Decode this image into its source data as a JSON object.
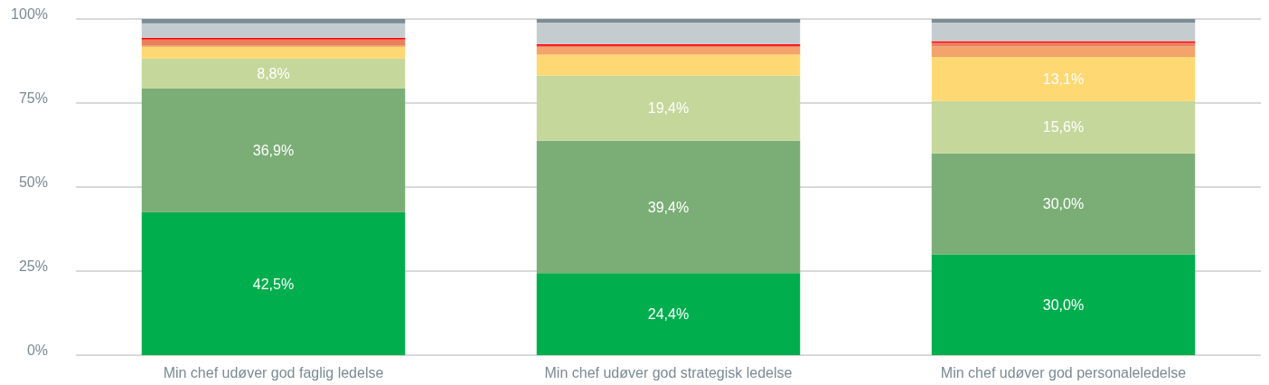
{
  "chart_data": {
    "type": "bar",
    "stacked": true,
    "categories": [
      "Min chef udøver god faglig ledelse",
      "Min chef udøver god strategisk ledelse",
      "Min chef udøver god personaleledelse"
    ],
    "series": [
      {
        "color": "#00ae4d",
        "values": [
          42.5,
          24.4,
          30.0
        ],
        "value_labels": [
          "42,5%",
          "24,4%",
          "30,0%"
        ]
      },
      {
        "color": "#7aae76",
        "values": [
          36.9,
          39.4,
          30.0
        ],
        "value_labels": [
          "36,9%",
          "39,4%",
          "30,0%"
        ]
      },
      {
        "color": "#c5d79a",
        "values": [
          8.8,
          19.4,
          15.6
        ],
        "value_labels": [
          "8,8%",
          "19,4%",
          "15,6%"
        ]
      },
      {
        "color": "#fed872",
        "values": [
          3.5,
          6.2,
          13.1
        ],
        "value_labels": [
          null,
          null,
          "13,1%"
        ]
      },
      {
        "color": "#f4a46a",
        "values": [
          0.5,
          2.1,
          3.1
        ]
      },
      {
        "color": "#e8805f",
        "values": [
          1.7,
          0.5,
          1.1
        ]
      },
      {
        "color": "#ff0000",
        "values": [
          0.5,
          0.5,
          0.5
        ]
      },
      {
        "color": "#c5cccf",
        "values": [
          4.3,
          6.4,
          5.5
        ]
      },
      {
        "color": "#7b8c93",
        "values": [
          1.3,
          1.1,
          1.1
        ]
      }
    ],
    "ylim": [
      0,
      100
    ],
    "yticks": [
      {
        "value": 0,
        "label": "0%"
      },
      {
        "value": 25,
        "label": "25%"
      },
      {
        "value": 50,
        "label": "50%"
      },
      {
        "value": 75,
        "label": "75%"
      },
      {
        "value": 100,
        "label": "100%"
      }
    ],
    "grid": "y"
  }
}
